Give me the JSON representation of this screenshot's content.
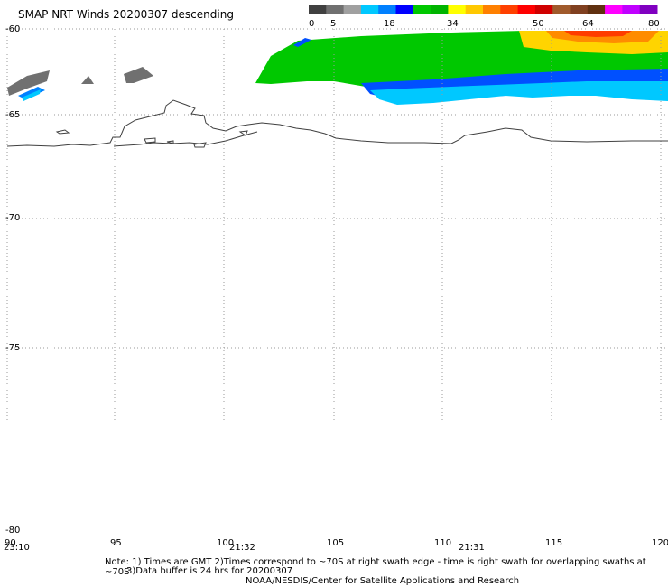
{
  "header": {
    "title": "SMAP NRT Winds  20200307  descending"
  },
  "color_scale": {
    "labels": [
      "0",
      "5",
      "18",
      "34",
      "50",
      "64",
      "80"
    ],
    "colors": [
      "#404040",
      "#707070",
      "#a0a0a0",
      "#00c8ff",
      "#0080ff",
      "#0000ff",
      "#00c800",
      "#00b400",
      "#ffff00",
      "#ffc800",
      "#ff8000",
      "#ff4000",
      "#ff0000",
      "#d00000",
      "#a05a2c",
      "#804020",
      "#603010",
      "#ff00ff",
      "#c000ff",
      "#8000c0"
    ]
  },
  "axes": {
    "lat_labels": [
      "-60",
      "-65",
      "-70",
      "-75",
      "-80"
    ],
    "lon_labels": [
      "90",
      "95",
      "100",
      "105",
      "110",
      "115",
      "120"
    ],
    "swath_times": [
      "23:10",
      "21:32",
      "21:31"
    ]
  },
  "notes": {
    "line1": "Note: 1) Times are GMT 2)Times correspond to ~70S at right swath edge - time is right swath for overlapping swaths at ~70S",
    "line2": "3)Data buffer is 24 hrs for 20200307",
    "line3": "NOAA/NESDIS/Center for Satellite Applications and Research"
  }
}
